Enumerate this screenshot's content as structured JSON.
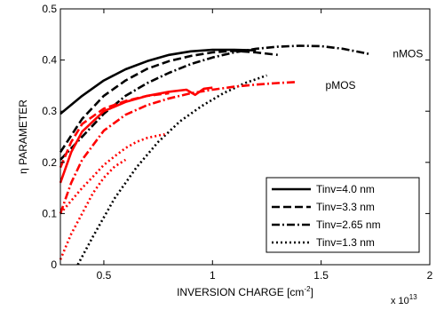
{
  "chart_data": {
    "type": "line",
    "xlabel": "INVERSION CHARGE [cm",
    "xlabel_sup": "-2",
    "xlabel_close": "]",
    "ylabel": "η PARAMETER",
    "x_multiplier_base": "x 10",
    "x_multiplier_exp": "13",
    "xlim": [
      0.3,
      2.0
    ],
    "ylim": [
      0,
      0.5
    ],
    "xticks": [
      0.5,
      1.0,
      1.5,
      2.0
    ],
    "xtick_labels": [
      "0.5",
      "1",
      "1.5",
      "2"
    ],
    "yticks": [
      0,
      0.1,
      0.2,
      0.3,
      0.4,
      0.5
    ],
    "ytick_labels": [
      "0",
      "0.1",
      "0.2",
      "0.3",
      "0.4",
      "0.5"
    ],
    "grid": false,
    "legend_position": "bottom-right",
    "colors": {
      "nMOS": "#000000",
      "pMOS": "#ff0000"
    },
    "annotations": [
      {
        "text": "nMOS",
        "x": 1.83,
        "y": 0.412,
        "color": "#000000"
      },
      {
        "text": "pMOS",
        "x": 1.52,
        "y": 0.351,
        "color": "#ff0000"
      }
    ],
    "legend": [
      {
        "label": "Tinv=4.0 nm",
        "dash": "solid"
      },
      {
        "label": "Tinv=3.3 nm",
        "dash": "dashed"
      },
      {
        "label": "Tinv=2.65 nm",
        "dash": "dashdot"
      },
      {
        "label": "Tinv=1.3 nm",
        "dash": "dotted"
      }
    ],
    "series": [
      {
        "device": "nMOS",
        "tinv": "4.0",
        "dash": "solid",
        "x": [
          0.3,
          0.4,
          0.5,
          0.6,
          0.7,
          0.8,
          0.9,
          1.0,
          1.1,
          1.2
        ],
        "y": [
          0.295,
          0.33,
          0.36,
          0.382,
          0.398,
          0.41,
          0.417,
          0.42,
          0.42,
          0.419
        ]
      },
      {
        "device": "nMOS",
        "tinv": "3.3",
        "dash": "dashed",
        "x": [
          0.3,
          0.4,
          0.5,
          0.6,
          0.7,
          0.8,
          0.9,
          1.0,
          1.1,
          1.2,
          1.3
        ],
        "y": [
          0.22,
          0.285,
          0.33,
          0.36,
          0.383,
          0.398,
          0.408,
          0.415,
          0.418,
          0.415,
          0.41
        ]
      },
      {
        "device": "nMOS",
        "tinv": "2.65",
        "dash": "dashdot",
        "x": [
          0.3,
          0.4,
          0.5,
          0.6,
          0.7,
          0.8,
          0.9,
          1.0,
          1.1,
          1.2,
          1.3,
          1.4,
          1.5,
          1.6,
          1.72
        ],
        "y": [
          0.205,
          0.25,
          0.295,
          0.33,
          0.355,
          0.375,
          0.392,
          0.405,
          0.415,
          0.422,
          0.426,
          0.428,
          0.427,
          0.422,
          0.412
        ]
      },
      {
        "device": "nMOS",
        "tinv": "1.3",
        "dash": "dotted",
        "x": [
          0.38,
          0.45,
          0.55,
          0.65,
          0.75,
          0.85,
          0.95,
          1.05,
          1.15,
          1.25
        ],
        "y": [
          0.0,
          0.055,
          0.13,
          0.19,
          0.24,
          0.28,
          0.31,
          0.335,
          0.355,
          0.37
        ]
      },
      {
        "device": "pMOS",
        "tinv": "4.0",
        "dash": "solid",
        "x": [
          0.3,
          0.35,
          0.4,
          0.5,
          0.6,
          0.7,
          0.8,
          0.88,
          0.92,
          0.96,
          1.0
        ],
        "y": [
          0.16,
          0.22,
          0.26,
          0.3,
          0.318,
          0.33,
          0.338,
          0.342,
          0.332,
          0.344,
          0.346
        ]
      },
      {
        "device": "pMOS",
        "tinv": "3.3",
        "dash": "dashed",
        "x": [
          0.3,
          0.35,
          0.4,
          0.5,
          0.6,
          0.7,
          0.8
        ],
        "y": [
          0.19,
          0.24,
          0.275,
          0.305,
          0.32,
          0.33,
          0.335
        ]
      },
      {
        "device": "pMOS",
        "tinv": "2.65",
        "dash": "dashdot",
        "x": [
          0.3,
          0.35,
          0.4,
          0.5,
          0.6,
          0.7,
          0.8,
          0.9,
          1.0,
          1.1,
          1.2,
          1.3,
          1.38
        ],
        "y": [
          0.1,
          0.16,
          0.205,
          0.262,
          0.293,
          0.312,
          0.325,
          0.335,
          0.342,
          0.348,
          0.352,
          0.355,
          0.357
        ]
      },
      {
        "device": "pMOS",
        "tinv": "1.3",
        "dash": "dotted",
        "x": [
          0.3,
          0.35,
          0.4,
          0.45,
          0.5,
          0.55,
          0.6,
          0.65,
          0.7,
          0.78
        ],
        "y": [
          0.1,
          0.125,
          0.15,
          0.172,
          0.195,
          0.212,
          0.228,
          0.24,
          0.248,
          0.255
        ]
      },
      {
        "device": "pMOS",
        "tinv": "3.3",
        "dash": "dotted",
        "x": [
          0.3,
          0.35,
          0.4,
          0.45,
          0.5,
          0.55,
          0.6
        ],
        "y": [
          0.01,
          0.06,
          0.1,
          0.14,
          0.17,
          0.192,
          0.205
        ]
      }
    ]
  }
}
